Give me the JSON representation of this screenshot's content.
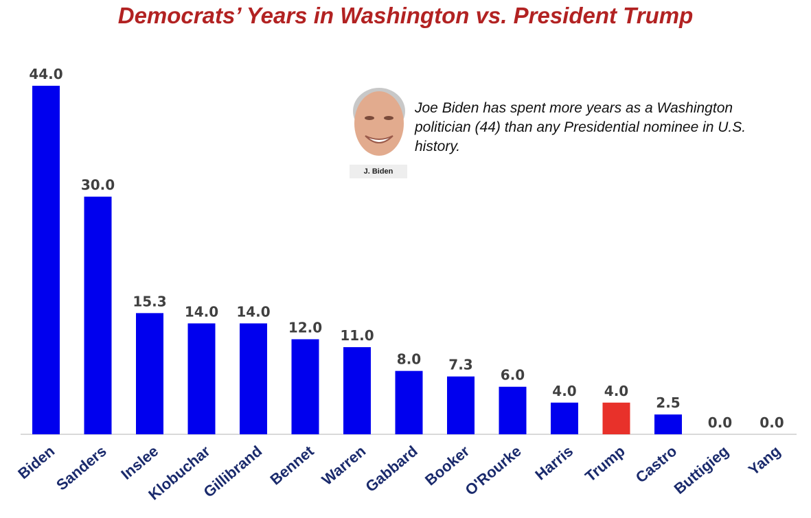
{
  "chart_data": {
    "type": "bar",
    "title": "Democrats’ Years in Washington vs. President Trump",
    "xlabel": "",
    "ylabel": "",
    "categories": [
      "Biden",
      "Sanders",
      "Inslee",
      "Klobuchar",
      "Gillibrand",
      "Bennet",
      "Warren",
      "Gabbard",
      "Booker",
      "O'Rourke",
      "Harris",
      "Trump",
      "Castro",
      "Buttigieg",
      "Yang"
    ],
    "values": [
      44.0,
      30.0,
      15.3,
      14.0,
      14.0,
      12.0,
      11.0,
      8.0,
      7.3,
      6.0,
      4.0,
      4.0,
      2.5,
      0.0,
      0.0
    ],
    "ylim": [
      0,
      44
    ],
    "grid": false,
    "colors": {
      "default": "#0000ee",
      "highlight": "#e8312a",
      "highlight_category": "Trump"
    },
    "annotation": "Joe Biden has spent more years as a Washington politician (44) than any Presidential nominee in U.S. history.",
    "portrait_label": "J. Biden"
  }
}
